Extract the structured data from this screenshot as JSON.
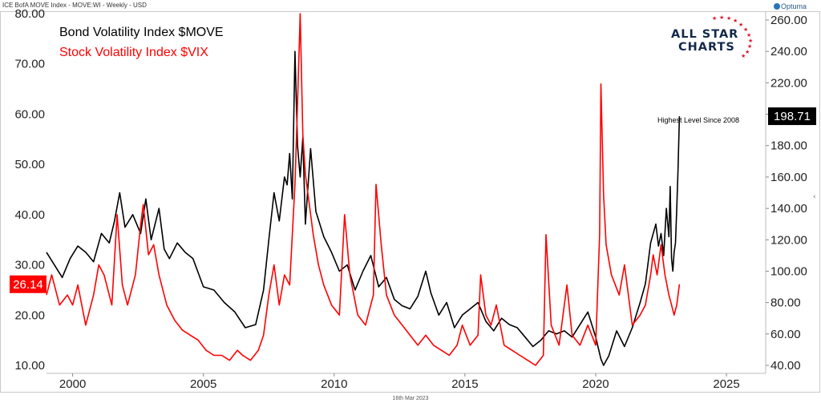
{
  "header": {
    "title": "ICE BofA MOVE Index - MOVE:WI - Weekly - USD"
  },
  "brand": {
    "optuma": "Optuma",
    "logo_line1": "ALL STAR",
    "logo_line2": "CHARTS"
  },
  "footer": {
    "date": "16th Mar 2023"
  },
  "colors": {
    "move": "#000000",
    "vix": "#ff0000",
    "logo_navy": "#13294b",
    "logo_red": "#d7192c"
  },
  "chart_data": {
    "type": "line",
    "title": "",
    "legend": [
      "Bond Volatility Index $MOVE",
      "Stock Volatility Index $VIX"
    ],
    "x_ticks": [
      "2000",
      "2005",
      "2010",
      "2015",
      "2020",
      "2025"
    ],
    "xlim": [
      1999.0,
      2026.5
    ],
    "left_axis": {
      "ticks": [
        "10.00",
        "20.00",
        "30.00",
        "40.00",
        "50.00",
        "60.00",
        "70.00",
        "80.00"
      ],
      "range": [
        8,
        80
      ]
    },
    "right_axis": {
      "ticks": [
        "40.00",
        "60.00",
        "80.00",
        "100.00",
        "120.00",
        "140.00",
        "160.00",
        "180.00",
        "200.00",
        "220.00",
        "240.00",
        "260.00"
      ],
      "range": [
        35,
        260
      ]
    },
    "last_values": {
      "vix": "26.14",
      "move": "198.71"
    },
    "annotation": "Highest Level Since 2008",
    "series": [
      {
        "name": "Bond Volatility Index $MOVE",
        "axis": "right",
        "x": [
          1999.0,
          1999.3,
          1999.6,
          1999.9,
          2000.2,
          2000.5,
          2000.8,
          2001.1,
          2001.4,
          2001.6,
          2001.8,
          2002.0,
          2002.3,
          2002.6,
          2002.8,
          2003.0,
          2003.3,
          2003.5,
          2003.7,
          2004.0,
          2004.3,
          2004.6,
          2005.0,
          2005.4,
          2005.8,
          2006.2,
          2006.6,
          2007.0,
          2007.3,
          2007.5,
          2007.7,
          2007.9,
          2008.1,
          2008.2,
          2008.3,
          2008.4,
          2008.5,
          2008.6,
          2008.7,
          2008.8,
          2008.9,
          2009.1,
          2009.3,
          2009.6,
          2009.9,
          2010.2,
          2010.5,
          2010.8,
          2011.1,
          2011.4,
          2011.7,
          2012.0,
          2012.3,
          2012.6,
          2012.9,
          2013.2,
          2013.5,
          2013.7,
          2014.0,
          2014.3,
          2014.6,
          2014.9,
          2015.2,
          2015.5,
          2015.8,
          2016.1,
          2016.4,
          2016.7,
          2017.0,
          2017.3,
          2017.6,
          2017.9,
          2018.2,
          2018.5,
          2018.8,
          2019.1,
          2019.4,
          2019.7,
          2020.0,
          2020.2,
          2020.3,
          2020.5,
          2020.8,
          2021.1,
          2021.4,
          2021.7,
          2021.9,
          2022.1,
          2022.3,
          2022.4,
          2022.5,
          2022.6,
          2022.7,
          2022.8,
          2022.85,
          2022.9,
          2022.95,
          2023.0,
          2023.05,
          2023.1,
          2023.15,
          2023.2
        ],
        "values": [
          112,
          104,
          96,
          108,
          116,
          112,
          106,
          124,
          118,
          132,
          150,
          128,
          136,
          124,
          146,
          120,
          140,
          114,
          108,
          118,
          112,
          108,
          90,
          88,
          80,
          74,
          64,
          66,
          88,
          120,
          150,
          132,
          160,
          155,
          175,
          146,
          240,
          180,
          160,
          185,
          130,
          178,
          138,
          122,
          112,
          100,
          104,
          88,
          100,
          110,
          90,
          96,
          82,
          78,
          76,
          84,
          100,
          86,
          72,
          80,
          64,
          72,
          76,
          80,
          68,
          62,
          70,
          66,
          64,
          58,
          52,
          56,
          62,
          60,
          62,
          58,
          66,
          74,
          58,
          44,
          40,
          46,
          62,
          52,
          64,
          80,
          92,
          118,
          130,
          116,
          124,
          110,
          140,
          122,
          154,
          108,
          100,
          112,
          118,
          140,
          165,
          198.71
        ]
      },
      {
        "name": "Stock Volatility Index $VIX",
        "axis": "left",
        "x": [
          1999.0,
          1999.2,
          1999.5,
          1999.8,
          2000.0,
          2000.2,
          2000.5,
          2000.8,
          2001.0,
          2001.2,
          2001.5,
          2001.7,
          2001.9,
          2002.1,
          2002.4,
          2002.6,
          2002.7,
          2002.9,
          2003.1,
          2003.3,
          2003.6,
          2003.9,
          2004.2,
          2004.5,
          2004.8,
          2005.1,
          2005.4,
          2005.7,
          2006.0,
          2006.3,
          2006.5,
          2006.8,
          2007.1,
          2007.3,
          2007.5,
          2007.7,
          2007.9,
          2008.1,
          2008.3,
          2008.5,
          2008.6,
          2008.7,
          2008.8,
          2008.9,
          2009.0,
          2009.2,
          2009.4,
          2009.6,
          2009.9,
          2010.2,
          2010.4,
          2010.6,
          2010.9,
          2011.2,
          2011.5,
          2011.6,
          2011.8,
          2012.0,
          2012.3,
          2012.6,
          2012.9,
          2013.2,
          2013.5,
          2013.8,
          2014.1,
          2014.4,
          2014.7,
          2014.9,
          2015.2,
          2015.5,
          2015.6,
          2015.8,
          2016.0,
          2016.2,
          2016.5,
          2016.8,
          2017.1,
          2017.4,
          2017.7,
          2018.0,
          2018.1,
          2018.3,
          2018.6,
          2018.9,
          2019.1,
          2019.4,
          2019.7,
          2020.0,
          2020.15,
          2020.2,
          2020.3,
          2020.4,
          2020.6,
          2020.9,
          2021.1,
          2021.4,
          2021.7,
          2021.9,
          2022.1,
          2022.2,
          2022.35,
          2022.5,
          2022.65,
          2022.8,
          2022.9,
          2023.0,
          2023.1,
          2023.2
        ],
        "values": [
          24,
          28,
          22,
          24,
          22,
          26,
          18,
          24,
          30,
          28,
          22,
          40,
          26,
          22,
          28,
          38,
          42,
          32,
          34,
          28,
          22,
          19,
          17,
          16,
          15,
          13,
          12,
          12,
          11,
          13,
          12,
          11,
          13,
          16,
          24,
          30,
          22,
          28,
          26,
          46,
          62,
          80,
          56,
          48,
          44,
          36,
          30,
          26,
          22,
          20,
          40,
          28,
          20,
          18,
          24,
          46,
          34,
          24,
          20,
          18,
          16,
          14,
          16,
          14,
          13,
          12,
          14,
          18,
          14,
          16,
          28,
          20,
          18,
          22,
          14,
          13,
          12,
          11,
          10,
          12,
          36,
          18,
          14,
          26,
          16,
          14,
          18,
          14,
          36,
          66,
          44,
          34,
          28,
          24,
          30,
          18,
          20,
          22,
          28,
          32,
          28,
          34,
          28,
          24,
          22,
          20,
          22,
          26.14
        ]
      }
    ]
  }
}
